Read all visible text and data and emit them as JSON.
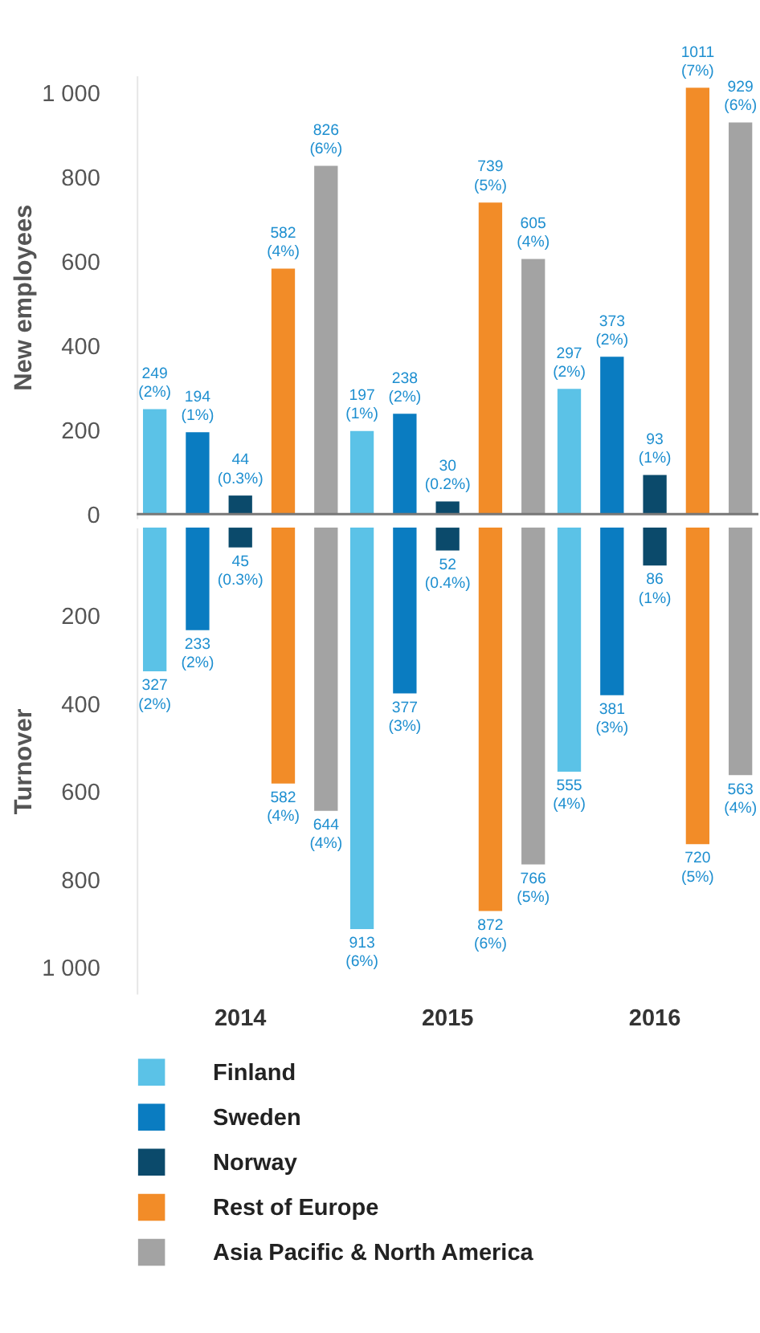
{
  "chart_data": [
    {
      "type": "bar",
      "categories": [
        "2014",
        "2015",
        "2016"
      ],
      "ylabel": "New employees",
      "ylim": [
        -10,
        1040
      ],
      "yticks": [
        0,
        200,
        400,
        600,
        800,
        {
          "value": 1000,
          "label": "1 000"
        }
      ],
      "tick_labels": "y",
      "grid": false,
      "ref_lines": [
        {
          "axis": "y",
          "value": 0,
          "color": "#777777"
        }
      ],
      "series": [
        {
          "color": "#5bc2e7",
          "values": [
            249,
            197,
            297
          ],
          "value_labels": [
            "249\n(2%)",
            "197\n(1%)",
            "297\n(2%)"
          ]
        },
        {
          "color": "#0a7cc1",
          "values": [
            194,
            238,
            373
          ],
          "value_labels": [
            "194\n(1%)",
            "238\n(2%)",
            "373\n(2%)"
          ]
        },
        {
          "color": "#0b4a6b",
          "values": [
            44,
            30,
            93
          ],
          "value_labels": [
            "44\n(0.3%)",
            "30\n(0.2%)",
            "93\n(1%)"
          ]
        },
        {
          "color": "#f28c28",
          "values": [
            582,
            739,
            1011
          ],
          "value_labels": [
            "582\n(4%)",
            "739\n(5%)",
            "1011\n(7%)"
          ]
        },
        {
          "color": "#a3a3a3",
          "values": [
            826,
            605,
            929
          ],
          "value_labels": [
            "826\n(6%)",
            "605\n(4%)",
            "929\n(6%)"
          ]
        }
      ]
    },
    {
      "type": "bar",
      "categories": [
        "2014",
        "2015",
        "2016"
      ],
      "ylabel": "Turnover",
      "ylim": [
        1060,
        0
      ],
      "yticks": [
        200,
        400,
        600,
        800,
        {
          "value": 1000,
          "label": "1 000"
        }
      ],
      "legend": "bottom",
      "grid": false,
      "series": [
        {
          "name": "Finland",
          "color": "#5bc2e7",
          "values": [
            327,
            913,
            555
          ],
          "value_labels": [
            "327\n(2%)",
            "913\n(6%)",
            "555\n(4%)"
          ]
        },
        {
          "name": "Sweden",
          "color": "#0a7cc1",
          "values": [
            233,
            377,
            381
          ],
          "value_labels": [
            "233\n(2%)",
            "377\n(3%)",
            "381\n(3%)"
          ]
        },
        {
          "name": "Norway",
          "color": "#0b4a6b",
          "values": [
            45,
            52,
            86
          ],
          "value_labels": [
            "45\n(0.3%)",
            "52\n(0.4%)",
            "86\n(1%)"
          ]
        },
        {
          "name": "Rest of Europe",
          "color": "#f28c28",
          "values": [
            582,
            872,
            720
          ],
          "value_labels": [
            "582\n(4%)",
            "872\n(6%)",
            "720\n(5%)"
          ]
        },
        {
          "name": "Asia Pacific & North America",
          "color": "#a3a3a3",
          "values": [
            644,
            766,
            563
          ],
          "value_labels": [
            "644\n(4%)",
            "766\n(5%)",
            "563\n(4%)"
          ]
        }
      ]
    }
  ]
}
